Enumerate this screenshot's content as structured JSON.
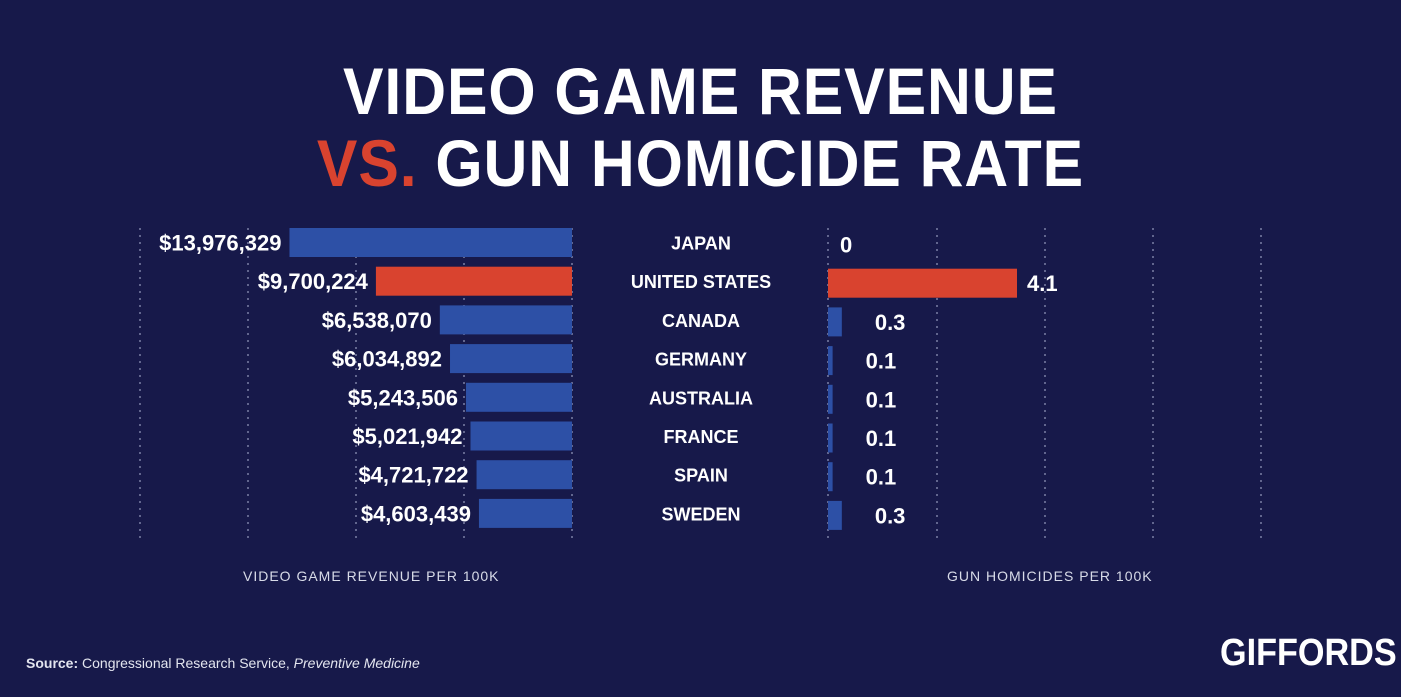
{
  "title": {
    "line1": "VIDEO GAME REVENUE",
    "vs": "VS.",
    "line2_rest": " GUN HOMICIDE RATE"
  },
  "axis_labels": {
    "left": "VIDEO GAME REVENUE PER 100K",
    "right": "GUN HOMICIDES PER 100K"
  },
  "source": {
    "prefix": "Source:",
    "text": " Congressional Research Service, ",
    "italic": "Preventive Medicine"
  },
  "logo": "GIFFORDS",
  "colors": {
    "background": "#17194a",
    "bar_default": "#2d50a6",
    "bar_highlight": "#d9432f",
    "grid": "#8a8fb3",
    "text": "#ffffff"
  },
  "chart_data": [
    {
      "type": "bar",
      "orientation": "horizontal",
      "direction": "right-to-left",
      "categories": [
        "JAPAN",
        "UNITED STATES",
        "CANADA",
        "GERMANY",
        "AUSTRALIA",
        "FRANCE",
        "SPAIN",
        "SWEDEN"
      ],
      "values": [
        13976329,
        9700224,
        6538070,
        6034892,
        5243506,
        5021942,
        4721722,
        4603439
      ],
      "value_labels": [
        "$13,976,329",
        "$9,700,224",
        "$6,538,070",
        "$6,034,892",
        "$5,243,506",
        "$5,021,942",
        "$4,721,722",
        "$4,603,439"
      ],
      "highlight_index": 1,
      "xlabel": "VIDEO GAME REVENUE PER 100K",
      "xlim": [
        0,
        14000000
      ],
      "grid": true
    },
    {
      "type": "bar",
      "orientation": "horizontal",
      "direction": "left-to-right",
      "categories": [
        "JAPAN",
        "UNITED STATES",
        "CANADA",
        "GERMANY",
        "AUSTRALIA",
        "FRANCE",
        "SPAIN",
        "SWEDEN"
      ],
      "values": [
        0,
        4.1,
        0.3,
        0.1,
        0.1,
        0.1,
        0.1,
        0.3
      ],
      "value_labels": [
        "0",
        "4.1",
        "0.3",
        "0.1",
        "0.1",
        "0.1",
        "0.1",
        "0.3"
      ],
      "highlight_index": 1,
      "xlabel": "GUN HOMICIDES PER 100K",
      "xlim": [
        0,
        4.1
      ],
      "grid": true
    }
  ]
}
